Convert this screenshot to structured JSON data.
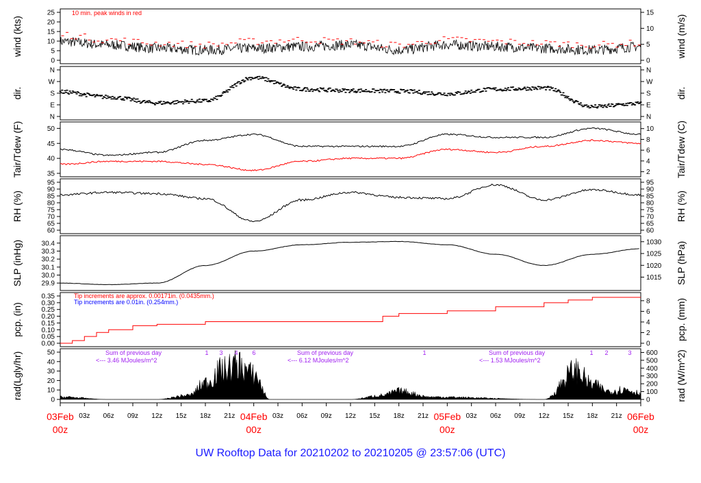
{
  "title": "UW Rooftop Data for 20210202  to  20210205 @ 23:57:06  (UTC)",
  "colors": {
    "title": "#1a1aff",
    "red": "#ff0000",
    "blue": "#0000ff",
    "purple": "#a020f0",
    "black": "#000000"
  },
  "time_axis": {
    "hour_ticks": [
      "03z",
      "06z",
      "09z",
      "12z",
      "15z",
      "18z",
      "21z",
      "03z",
      "06z",
      "09z",
      "12z",
      "15z",
      "18z",
      "21z",
      "03z",
      "06z",
      "09z",
      "12z",
      "15z",
      "18z",
      "21z"
    ],
    "day_labels": [
      {
        "date": "03Feb",
        "hour": "00z"
      },
      {
        "date": "04Feb",
        "hour": "00z"
      },
      {
        "date": "05Feb",
        "hour": "00z"
      },
      {
        "date": "06Feb",
        "hour": "00z"
      }
    ]
  },
  "panels": {
    "wind": {
      "left_label": "wind (kts)",
      "right_label": "wind (m/s)",
      "note": "10 min. peak winds in red",
      "left_ticks": [
        "0",
        "5",
        "10",
        "15",
        "20",
        "25"
      ],
      "right_ticks": [
        "0",
        "5",
        "10",
        "15"
      ]
    },
    "dir": {
      "left_label": "dir.",
      "right_label": "dir.",
      "left_ticks": [
        "N",
        "E",
        "S",
        "W",
        "N"
      ],
      "right_ticks": [
        "N",
        "E",
        "S",
        "W",
        "N"
      ]
    },
    "temp": {
      "left_label": "Tair/Tdew (F)",
      "right_label": "Tair/Tdew (C)",
      "left_ticks": [
        "35",
        "40",
        "45",
        "50"
      ],
      "right_ticks": [
        "2",
        "4",
        "6",
        "8",
        "10"
      ]
    },
    "rh": {
      "left_label": "RH (%)",
      "right_label": "RH (%)",
      "ticks": [
        "60",
        "65",
        "70",
        "75",
        "80",
        "85",
        "90",
        "95"
      ]
    },
    "slp": {
      "left_label": "SLP (inHg)",
      "right_label": "SLP (hPa)",
      "left_ticks": [
        "29.9",
        "30.0",
        "30.1",
        "30.2",
        "30.3",
        "30.4"
      ],
      "right_ticks": [
        "1015",
        "1020",
        "1025",
        "1030"
      ]
    },
    "pcp": {
      "left_label": "pcp. (in)",
      "right_label": "pcp. (mm)",
      "note_red": "Tip increments are approx. 0.00171in. (0.0435mm.)",
      "note_blue": "Tip increments are 0.01in. (0.254mm.)",
      "left_ticks": [
        "0.00",
        "0.05",
        "0.10",
        "0.15",
        "0.20",
        "0.25",
        "0.30",
        "0.35"
      ],
      "right_ticks": [
        "0",
        "2",
        "4",
        "6",
        "8"
      ]
    },
    "rad": {
      "left_label": "rad(Lgly/hr)",
      "right_label": "rad (W/m^2)",
      "left_ticks": [
        "0",
        "10",
        "20",
        "30",
        "40",
        "50"
      ],
      "right_ticks": [
        "0",
        "100",
        "200",
        "300",
        "400",
        "500",
        "600"
      ],
      "day_summaries": [
        {
          "line1": "Sum of previous day",
          "line2": "<--- 3.46 MJoules/m^2"
        },
        {
          "line1": "Sum of previous day",
          "line2": "<--- 6.12 MJoules/m^2"
        },
        {
          "line1": "Sum of previous day",
          "line2": "<--- 1.53 MJoules/m^2"
        }
      ],
      "marker_labels": [
        "1",
        "3",
        "4",
        "6",
        "1",
        "1",
        "2",
        "3"
      ]
    }
  },
  "chart_data": [
    {
      "type": "line",
      "panel": "wind",
      "xlabel": "",
      "ylabel": "wind (kts)",
      "ylim": [
        0,
        28
      ],
      "x": [
        0,
        6,
        12,
        18,
        24,
        30,
        36,
        42,
        48,
        54,
        60,
        66,
        72
      ],
      "series": [
        {
          "values": [
            11,
            9,
            7,
            6,
            7,
            8,
            9,
            6,
            9,
            8,
            7,
            6,
            8
          ]
        },
        {
          "values": [
            15,
            12,
            10,
            9,
            11,
            12,
            11,
            9,
            12,
            11,
            10,
            9,
            10
          ]
        }
      ]
    },
    {
      "type": "scatter",
      "panel": "dir",
      "ylabel": "dir.",
      "ylim": [
        0,
        360
      ],
      "x": [
        0,
        6,
        12,
        18,
        24,
        30,
        36,
        42,
        48,
        54,
        60,
        66,
        72
      ],
      "series": [
        {
          "values": [
            190,
            150,
            105,
            120,
            300,
            210,
            200,
            195,
            175,
            210,
            220,
            75,
            100
          ]
        }
      ]
    },
    {
      "type": "line",
      "panel": "temp",
      "ylabel": "Tair/Tdew (F)",
      "ylim": [
        35,
        52
      ],
      "x": [
        0,
        6,
        12,
        18,
        24,
        30,
        36,
        42,
        48,
        54,
        60,
        66,
        72
      ],
      "series": [
        {
          "values": [
            43,
            41,
            42,
            46,
            48,
            44,
            44,
            44,
            48,
            47,
            47,
            50,
            48
          ]
        },
        {
          "values": [
            38,
            39,
            39,
            38,
            36,
            39,
            40,
            40,
            43,
            42,
            44,
            46,
            45
          ]
        }
      ]
    },
    {
      "type": "line",
      "panel": "rh",
      "ylabel": "RH (%)",
      "ylim": [
        58,
        95
      ],
      "x": [
        0,
        6,
        12,
        18,
        24,
        30,
        36,
        42,
        48,
        54,
        60,
        66,
        72
      ],
      "series": [
        {
          "values": [
            86,
            88,
            87,
            83,
            65,
            82,
            88,
            84,
            83,
            94,
            82,
            90,
            86
          ]
        }
      ]
    },
    {
      "type": "line",
      "panel": "slp",
      "ylabel": "SLP (inHg)",
      "ylim": [
        29.85,
        30.45
      ],
      "x": [
        0,
        6,
        12,
        18,
        24,
        30,
        36,
        42,
        48,
        54,
        60,
        66,
        72
      ],
      "series": [
        {
          "values": [
            29.9,
            29.88,
            29.9,
            30.12,
            30.3,
            30.38,
            30.41,
            30.42,
            30.38,
            30.26,
            30.12,
            30.26,
            30.33
          ]
        }
      ]
    },
    {
      "type": "line",
      "panel": "pcp",
      "ylabel": "pcp. (in)",
      "ylim": [
        0,
        0.35
      ],
      "x": [
        0,
        1.5,
        3,
        4.5,
        6,
        9,
        12,
        18,
        24,
        36,
        40,
        42,
        48,
        54,
        60,
        63,
        66,
        69,
        72
      ],
      "series": [
        {
          "values": [
            0,
            0.02,
            0.05,
            0.08,
            0.1,
            0.13,
            0.14,
            0.16,
            0.16,
            0.16,
            0.2,
            0.22,
            0.24,
            0.27,
            0.3,
            0.32,
            0.34,
            0.34,
            0.34
          ]
        }
      ]
    },
    {
      "type": "area",
      "panel": "rad",
      "ylabel": "rad(Lgly/hr)",
      "ylim": [
        0,
        50
      ],
      "x": [
        0,
        6,
        12,
        16,
        18,
        20,
        22,
        24,
        26,
        36,
        40,
        42,
        46,
        60,
        64,
        66,
        68,
        70,
        72
      ],
      "series": [
        {
          "values": [
            3,
            0,
            0,
            5,
            20,
            35,
            42,
            30,
            0,
            0,
            5,
            10,
            3,
            0,
            35,
            18,
            10,
            12,
            8
          ]
        }
      ]
    }
  ]
}
